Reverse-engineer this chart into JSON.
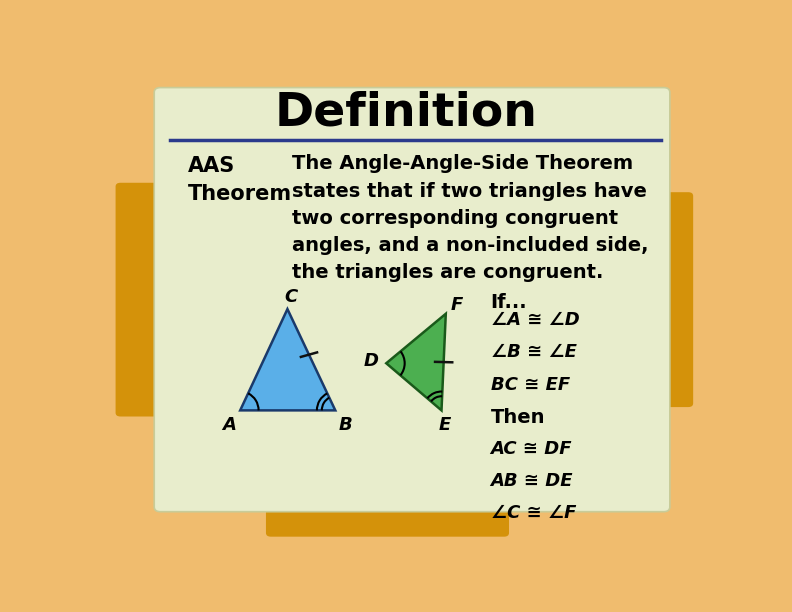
{
  "title": "Definition",
  "title_fontsize": 34,
  "title_fontweight": "bold",
  "bg_outer": "#f0bc6e",
  "bg_card": "#e8edcc",
  "divider_color": "#2b3a8c",
  "term_label": "AAS\nTheorem",
  "term_fontsize": 15,
  "term_fontweight": "bold",
  "definition_text": "The Angle-Angle-Side Theorem\nstates that if two triangles have\ntwo corresponding congruent\nangles, and a non-included side,\nthe triangles are congruent.",
  "definition_fontsize": 14,
  "definition_fontweight": "bold",
  "if_text": "If...",
  "conditions": [
    "∠A ≅ ∠D",
    "∠B ≅ ∠E",
    "BC ≅ EF",
    "Then",
    "AC ≅ DF",
    "AB ≅ DE",
    "∠C ≅ ∠F"
  ],
  "triangle1_color": "#5aafe8",
  "triangle1_edge": "#1a3a6b",
  "triangle2_color": "#4caf50",
  "triangle2_edge": "#1a5a1a",
  "label_fontsize": 13,
  "conditions_fontsize": 13
}
